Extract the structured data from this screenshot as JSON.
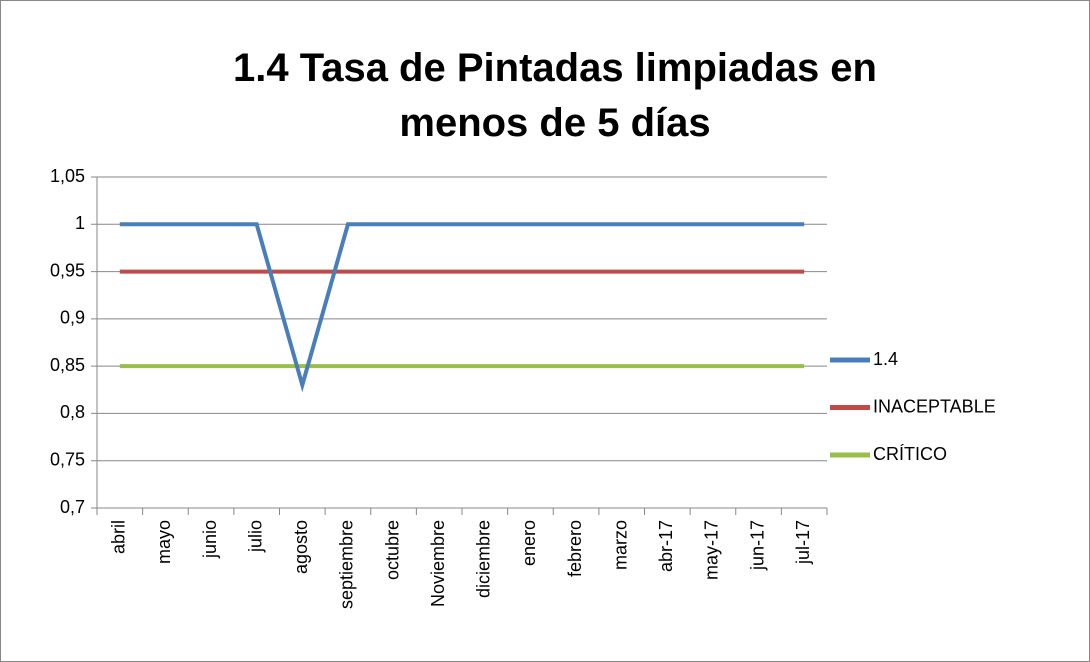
{
  "chart_data": {
    "type": "line",
    "title": "1.4 Tasa de Pintadas limpiadas en menos de 5 días",
    "categories": [
      "abril",
      "mayo",
      "junio",
      "julio",
      "agosto",
      "septiembre",
      "octubre",
      "Noviembre",
      "diciembre",
      "enero",
      "febrero",
      "marzo",
      "abr-17",
      "may-17",
      "jun-17",
      "jul-17"
    ],
    "series": [
      {
        "name": "1.4",
        "color": "#4a7ebb",
        "values": [
          1,
          1,
          1,
          1,
          0.83,
          1,
          1,
          1,
          1,
          1,
          1,
          1,
          1,
          1,
          1,
          1
        ]
      },
      {
        "name": "INACEPTABLE",
        "color": "#be4b48",
        "values": [
          0.95,
          0.95,
          0.95,
          0.95,
          0.95,
          0.95,
          0.95,
          0.95,
          0.95,
          0.95,
          0.95,
          0.95,
          0.95,
          0.95,
          0.95,
          0.95
        ]
      },
      {
        "name": "CRÍTICO",
        "color": "#98c049",
        "values": [
          0.85,
          0.85,
          0.85,
          0.85,
          0.85,
          0.85,
          0.85,
          0.85,
          0.85,
          0.85,
          0.85,
          0.85,
          0.85,
          0.85,
          0.85,
          0.85
        ]
      }
    ],
    "ylim": [
      0.7,
      1.05
    ],
    "yticks": [
      {
        "value": 0.7,
        "label": "0,7"
      },
      {
        "value": 0.75,
        "label": "0,75"
      },
      {
        "value": 0.8,
        "label": "0,8"
      },
      {
        "value": 0.85,
        "label": "0,85"
      },
      {
        "value": 0.9,
        "label": "0,9"
      },
      {
        "value": 0.95,
        "label": "0,95"
      },
      1,
      {
        "value": 1.05,
        "label": "1,05"
      }
    ],
    "grid": true,
    "legend": "right"
  }
}
